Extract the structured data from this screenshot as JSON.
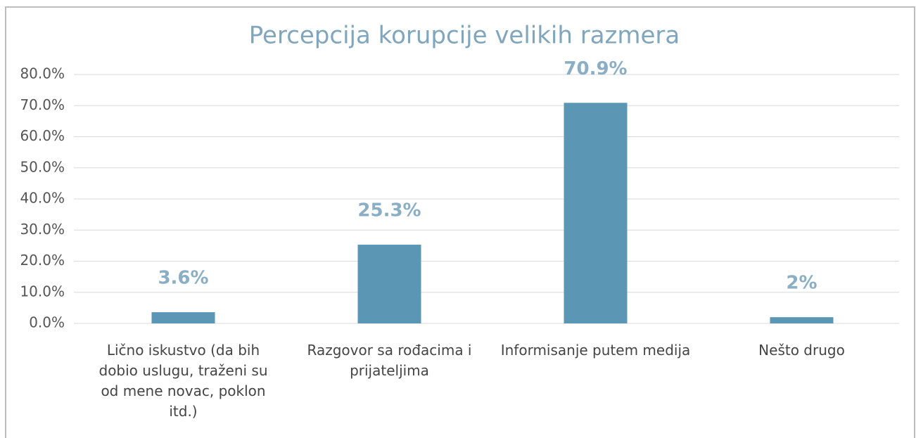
{
  "chart_data": {
    "type": "bar",
    "title": "Percepcija korupcije velikih razmera",
    "categories": [
      "Lično iskustvo (da bih dobio uslugu, traženi su od mene novac, poklon itd.)",
      "Razgovor sa rođacima i prijateljima",
      "Informisanje putem medija",
      "Nešto drugo"
    ],
    "values": [
      3.6,
      25.3,
      70.9,
      2
    ],
    "value_labels": [
      "3.6%",
      "25.3%",
      "70.9%",
      "2%"
    ],
    "color": "#5b96b5",
    "ylim": [
      0,
      80
    ],
    "yticks": [
      {
        "value": 0,
        "label": "0.0%"
      },
      {
        "value": 10,
        "label": "10.0%"
      },
      {
        "value": 20,
        "label": "20.0%"
      },
      {
        "value": 30,
        "label": "30.0%"
      },
      {
        "value": 40,
        "label": "40.0%"
      },
      {
        "value": 50,
        "label": "50.0%"
      },
      {
        "value": 60,
        "label": "60.0%"
      },
      {
        "value": 70,
        "label": "70.0%"
      },
      {
        "value": 80,
        "label": "80.0%"
      }
    ],
    "grid": true
  }
}
